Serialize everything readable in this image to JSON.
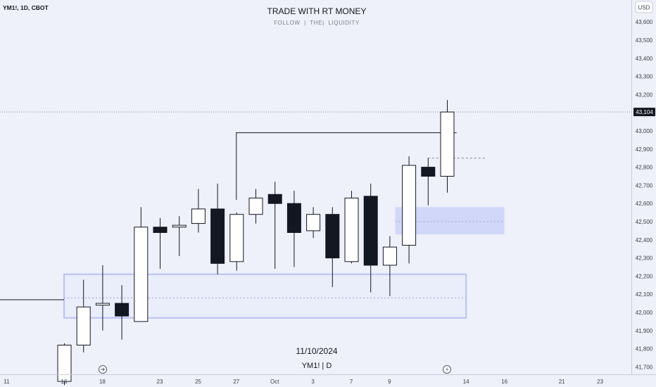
{
  "header": {
    "symbol": "YM1!, 1D, CBOT",
    "watermark_title": "TRADE WITH RT MONEY",
    "watermark_subtitle": "FOLLOW  |  THE|  LIQUIDITY"
  },
  "footer_watermark": {
    "date": "11/10/2024",
    "symbol_interval": "YM1! | D"
  },
  "currency_button": "USD",
  "last_price_label": "43,104",
  "colors": {
    "background": "#eef0fa",
    "bull_body": "#ffffff",
    "bear_body": "#131722",
    "wick": "#131722",
    "zone_fill": "#c5cff7",
    "zone_outline": "#b8c2f2",
    "axis_text": "#3a3e4a"
  },
  "icons": [
    "replay-icon",
    "lightning-icon"
  ],
  "chart_data": {
    "type": "candlestick",
    "y_axis": {
      "ticks": [
        41700,
        41800,
        41900,
        42000,
        42100,
        42200,
        42300,
        42400,
        42500,
        42600,
        42700,
        42800,
        42900,
        43000,
        43100,
        43200,
        43300,
        43400,
        43500,
        43600
      ],
      "tick_labels": [
        "41,700",
        "41,800",
        "41,900",
        "42,000",
        "42,100",
        "42,200",
        "42,300",
        "42,400",
        "42,500",
        "42,600",
        "42,700",
        "42,800",
        "42,900",
        "43,000",
        "43,100",
        "43,200",
        "43,300",
        "43,400",
        "43,500",
        "43,600"
      ],
      "range": [
        41650,
        43760
      ]
    },
    "x_axis": {
      "tick_labels": [
        "11",
        "16",
        "18",
        "23",
        "25",
        "27",
        "Oct",
        "3",
        "7",
        "9",
        "14",
        "16",
        "21",
        "23"
      ],
      "tick_slots": [
        -3,
        0,
        2,
        5,
        7,
        9,
        11,
        13,
        15,
        17,
        21,
        23,
        26,
        28
      ]
    },
    "candles": [
      {
        "open": 41620,
        "high": 41830,
        "low": 41600,
        "close": 41820
      },
      {
        "open": 41820,
        "high": 42180,
        "low": 41780,
        "close": 42030
      },
      {
        "open": 42040,
        "high": 42260,
        "low": 41900,
        "close": 42050
      },
      {
        "open": 42050,
        "high": 42150,
        "low": 41850,
        "close": 41980
      },
      {
        "open": 41950,
        "high": 42580,
        "low": 41950,
        "close": 42470
      },
      {
        "open": 42470,
        "high": 42520,
        "low": 42240,
        "close": 42440
      },
      {
        "open": 42470,
        "high": 42530,
        "low": 42310,
        "close": 42480
      },
      {
        "open": 42490,
        "high": 42680,
        "low": 42440,
        "close": 42570
      },
      {
        "open": 42570,
        "high": 42710,
        "low": 42210,
        "close": 42270
      },
      {
        "open": 42280,
        "high": 42550,
        "low": 42230,
        "close": 42540
      },
      {
        "open": 42540,
        "high": 42680,
        "low": 42490,
        "close": 42630
      },
      {
        "open": 42650,
        "high": 42720,
        "low": 42240,
        "close": 42600
      },
      {
        "open": 42600,
        "high": 42670,
        "low": 42250,
        "close": 42440
      },
      {
        "open": 42450,
        "high": 42580,
        "low": 42410,
        "close": 42540
      },
      {
        "open": 42540,
        "high": 42580,
        "low": 42140,
        "close": 42300
      },
      {
        "open": 42280,
        "high": 42670,
        "low": 42270,
        "close": 42630
      },
      {
        "open": 42640,
        "high": 42710,
        "low": 42110,
        "close": 42260
      },
      {
        "open": 42260,
        "high": 42420,
        "low": 42090,
        "close": 42360
      },
      {
        "open": 42370,
        "high": 42860,
        "low": 42270,
        "close": 42810
      },
      {
        "open": 42800,
        "high": 42850,
        "low": 42590,
        "close": 42750
      },
      {
        "open": 42750,
        "high": 43170,
        "low": 42660,
        "close": 43104
      }
    ],
    "last_price": 43104,
    "zones": [
      {
        "slot_from": 0,
        "slot_to": 21,
        "price_low": 41970,
        "price_high": 42210,
        "style": "outline"
      },
      {
        "slot_from": 17.3,
        "slot_to": 23,
        "price_low": 42430,
        "price_high": 42580,
        "style": "filled"
      }
    ],
    "lines": [
      {
        "points": [
          [
            -4,
            42070
          ],
          [
            0,
            42070
          ]
        ],
        "style": "solid"
      },
      {
        "points": [
          [
            9,
            42620
          ],
          [
            9,
            42990
          ],
          [
            20.5,
            42990
          ]
        ],
        "style": "solid"
      },
      {
        "points": [
          [
            19,
            42850
          ],
          [
            22,
            42850
          ]
        ],
        "style": "dashed"
      },
      {
        "points": [
          [
            0,
            42080
          ],
          [
            21,
            42080
          ]
        ],
        "style": "dotted"
      },
      {
        "points": [
          [
            17.3,
            42500
          ],
          [
            23,
            42500
          ]
        ],
        "style": "dotted"
      }
    ]
  }
}
